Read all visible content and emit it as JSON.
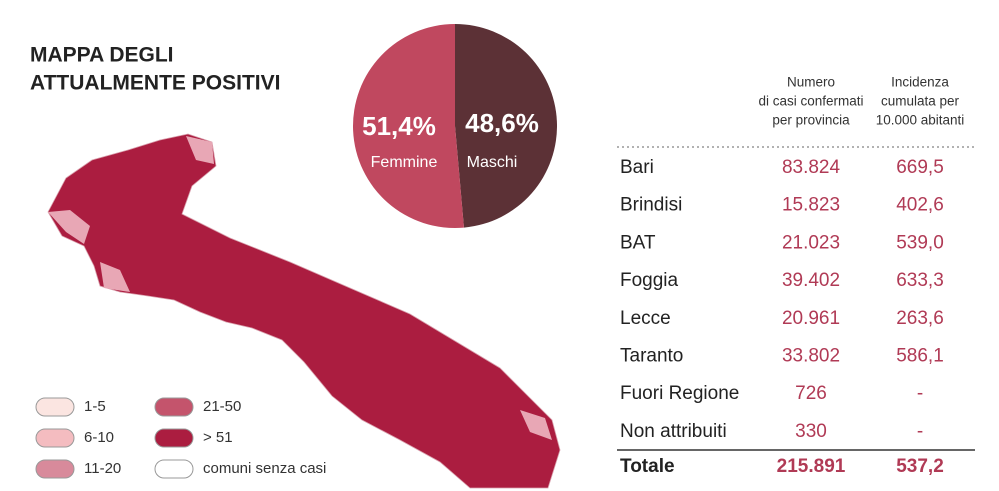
{
  "title_lines": [
    "MAPPA DEGLI",
    "ATTUALMENTE POSITIVI"
  ],
  "chart_data": {
    "type": "pie",
    "categories": [
      "Femmine",
      "Maschi"
    ],
    "values": [
      51.4,
      48.6
    ],
    "value_labels": [
      "51,4%",
      "48,6%"
    ],
    "colors": [
      "#c0485f",
      "#5c3136"
    ]
  },
  "map_legend": [
    {
      "label": "1-5",
      "color": "#fbe5e1"
    },
    {
      "label": "6-10",
      "color": "#f4bcc0"
    },
    {
      "label": "11-20",
      "color": "#d88a9b"
    },
    {
      "label": "21-50",
      "color": "#c4546c"
    },
    {
      "label": "> 51",
      "color": "#ab1d40"
    },
    {
      "label": "comuni senza casi",
      "color": "#ffffff"
    }
  ],
  "table": {
    "headers": [
      [
        "Numero",
        "di casi confermati",
        "per provincia"
      ],
      [
        "Incidenza",
        "cumulata per",
        "10.000 abitanti"
      ]
    ],
    "rows": [
      [
        "Bari",
        "83.824",
        "669,5"
      ],
      [
        "Brindisi",
        "15.823",
        "402,6"
      ],
      [
        "BAT",
        "21.023",
        "539,0"
      ],
      [
        "Foggia",
        "39.402",
        "633,3"
      ],
      [
        "Lecce",
        "20.961",
        "263,6"
      ],
      [
        "Taranto",
        "33.802",
        "586,1"
      ],
      [
        "Fuori Regione",
        "726",
        "-"
      ],
      [
        "Non attribuiti",
        "330",
        "-"
      ]
    ],
    "total": [
      "Totale",
      "215.891",
      "537,2"
    ]
  }
}
